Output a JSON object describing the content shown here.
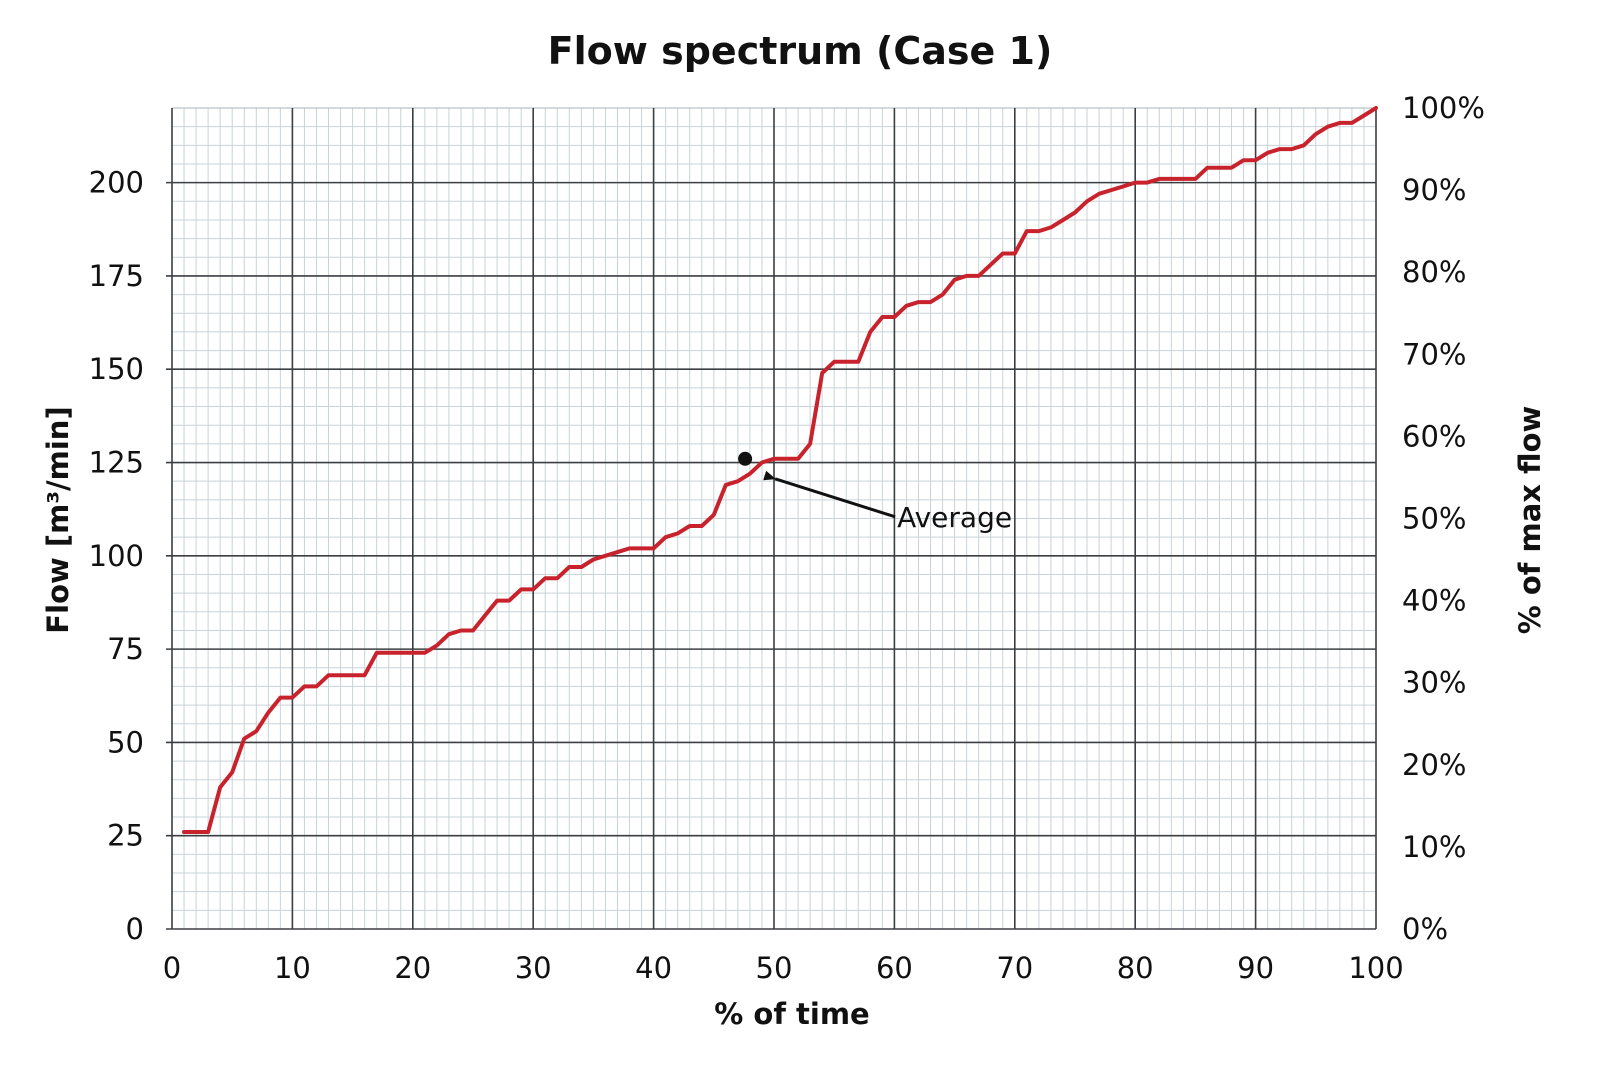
{
  "chart_data": {
    "type": "line",
    "title": "Flow spectrum (Case 1)",
    "xlabel": "% of time",
    "ylabel": "Flow [m³/min]",
    "y2label": "% of max flow",
    "xlim": [
      0,
      100
    ],
    "ylim": [
      0,
      220
    ],
    "y2lim": [
      0,
      100
    ],
    "x_ticks": [
      "0",
      "10",
      "20",
      "30",
      "40",
      "50",
      "60",
      "70",
      "80",
      "90",
      "100"
    ],
    "y_ticks": [
      "0",
      "25",
      "50",
      "75",
      "100",
      "125",
      "150",
      "175",
      "200"
    ],
    "y2_ticks": [
      "0%",
      "10%",
      "20%",
      "30%",
      "40%",
      "50%",
      "60%",
      "70%",
      "80%",
      "90%",
      "100%"
    ],
    "grid": true,
    "line_color": "#c8232c",
    "series": [
      {
        "x": [
          1,
          3,
          4,
          5,
          6,
          7,
          8,
          9,
          10,
          11,
          12,
          13,
          14,
          15,
          16,
          17,
          18,
          19,
          20,
          21,
          22,
          23,
          24,
          25,
          26,
          27,
          28,
          29,
          30,
          31,
          32,
          33,
          34,
          35,
          36,
          37,
          38,
          39,
          40,
          41,
          42,
          43,
          44,
          45,
          46,
          47,
          48,
          49,
          50,
          51,
          52,
          53,
          54,
          55,
          56,
          57,
          58,
          59,
          60,
          61,
          62,
          63,
          64,
          65,
          66,
          67,
          68,
          69,
          70,
          71,
          72,
          73,
          74,
          75,
          76,
          77,
          78,
          79,
          80,
          81,
          82,
          83,
          84,
          85,
          86,
          87,
          88,
          89,
          90,
          91,
          92,
          93,
          94,
          95,
          96,
          97,
          98,
          99,
          100
        ],
        "y": [
          26,
          26,
          38,
          42,
          51,
          53,
          58,
          62,
          62,
          65,
          65,
          68,
          68,
          68,
          68,
          74,
          74,
          74,
          74,
          74,
          76,
          79,
          80,
          80,
          84,
          88,
          88,
          91,
          91,
          94,
          94,
          97,
          97,
          99,
          100,
          101,
          102,
          102,
          102,
          105,
          106,
          108,
          108,
          111,
          119,
          120,
          122,
          125,
          126,
          126,
          126,
          130,
          149,
          152,
          152,
          152,
          160,
          164,
          164,
          167,
          168,
          168,
          170,
          174,
          175,
          175,
          178,
          181,
          181,
          187,
          187,
          188,
          190,
          192,
          195,
          197,
          198,
          199,
          200,
          200,
          201,
          201,
          201,
          201,
          204,
          204,
          204,
          206,
          206,
          208,
          209,
          209,
          210,
          213,
          215,
          216,
          216,
          218,
          220
        ]
      }
    ],
    "annotations": [
      {
        "text": "Average",
        "x": 47.6,
        "y": 126
      }
    ]
  }
}
